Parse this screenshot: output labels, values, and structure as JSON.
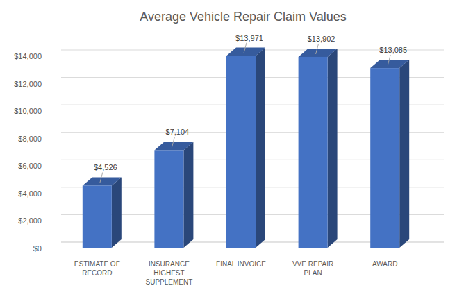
{
  "chart_data": {
    "type": "bar",
    "title": "Average Vehicle Repair Claim Values",
    "categories": [
      "ESTIMATE OF RECORD",
      "INSURANCE HIGHEST SUPPLEMENT",
      "FINAL INVOICE",
      "VVE REPAIR PLAN",
      "AWARD"
    ],
    "values": [
      4526,
      7104,
      13971,
      13902,
      13085
    ],
    "value_labels": [
      "$4,526",
      "$7,104",
      "$13,971",
      "$13,902",
      "$13,085"
    ],
    "color": "#4472c4",
    "ylim": [
      0,
      14000
    ],
    "yticks": [
      {
        "value": 0,
        "label": "$0"
      },
      {
        "value": 2000,
        "label": "$2,000"
      },
      {
        "value": 4000,
        "label": "$4,000"
      },
      {
        "value": 6000,
        "label": "$6,000"
      },
      {
        "value": 8000,
        "label": "$8,000"
      },
      {
        "value": 10000,
        "label": "$10,000"
      },
      {
        "value": 12000,
        "label": "$12,000"
      },
      {
        "value": 14000,
        "label": "$14,000"
      }
    ],
    "grid": true,
    "data_labels": true
  }
}
